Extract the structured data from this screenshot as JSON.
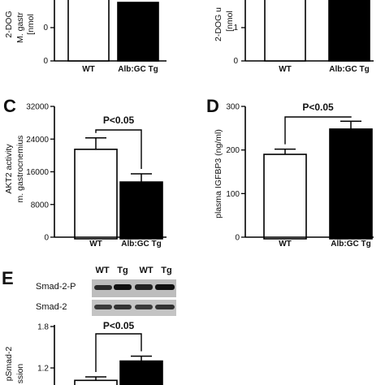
{
  "chart_data": [
    {
      "panel": "",
      "type": "bar",
      "ylabel_lines": [
        "2-DOG",
        "M. gastr",
        "[nmol"
      ],
      "categories": [
        "WT",
        "Alb:GC Tg"
      ],
      "values": [
        null,
        65
      ],
      "errors": [
        null,
        4
      ],
      "colors": [
        "#ffffff",
        "#000000"
      ]
    },
    {
      "panel": "",
      "type": "bar",
      "ylabel_lines": [
        "2-DOG u",
        "[nmol"
      ],
      "categories": [
        "WT",
        "Alb:GC Tg"
      ],
      "values": [
        null,
        null
      ],
      "colors": [
        "#ffffff",
        "#000000"
      ]
    },
    {
      "panel": "C",
      "type": "bar",
      "ylabel_lines": [
        "AKT2 activity",
        "m. gastrocnemius"
      ],
      "categories": [
        "WT",
        "Alb:GC Tg"
      ],
      "values": [
        21500,
        13500
      ],
      "errors": [
        2800,
        2000
      ],
      "ylim": [
        0,
        32000
      ],
      "yticks": [
        0,
        8000,
        16000,
        24000,
        32000
      ],
      "ytick_labels": [
        "0",
        "8000",
        "16000",
        "24000",
        "32000"
      ],
      "significance": "P<0.05",
      "colors": [
        "#ffffff",
        "#000000"
      ]
    },
    {
      "panel": "D",
      "type": "bar",
      "ylabel_lines": [
        "plasma IGFBP3 (ng/ml)"
      ],
      "categories": [
        "WT",
        "Alb:GC Tg"
      ],
      "values": [
        190,
        248
      ],
      "errors": [
        12,
        18
      ],
      "ylim": [
        0,
        300
      ],
      "yticks": [
        0,
        100,
        200,
        300
      ],
      "ytick_labels": [
        "0",
        "100",
        "200",
        "300"
      ],
      "significance": "P<0.05",
      "colors": [
        "#ffffff",
        "#000000"
      ]
    },
    {
      "panel": "E",
      "type": "bar",
      "ylabel_lines": [
        "pSmad-2",
        "ssion"
      ],
      "categories": [
        "WT",
        "Tg"
      ],
      "values": [
        1.02,
        1.3
      ],
      "errors": [
        0.05,
        0.07
      ],
      "yticks": [
        1.2,
        1.8
      ],
      "ytick_labels": [
        "1.2",
        "1.8"
      ],
      "significance": "P<0.05",
      "colors": [
        "#ffffff",
        "#000000"
      ]
    }
  ],
  "blot": {
    "lanes": [
      "WT",
      "Tg",
      "WT",
      "Tg"
    ],
    "rows": [
      "Smad-2-P",
      "Smad-2"
    ]
  }
}
